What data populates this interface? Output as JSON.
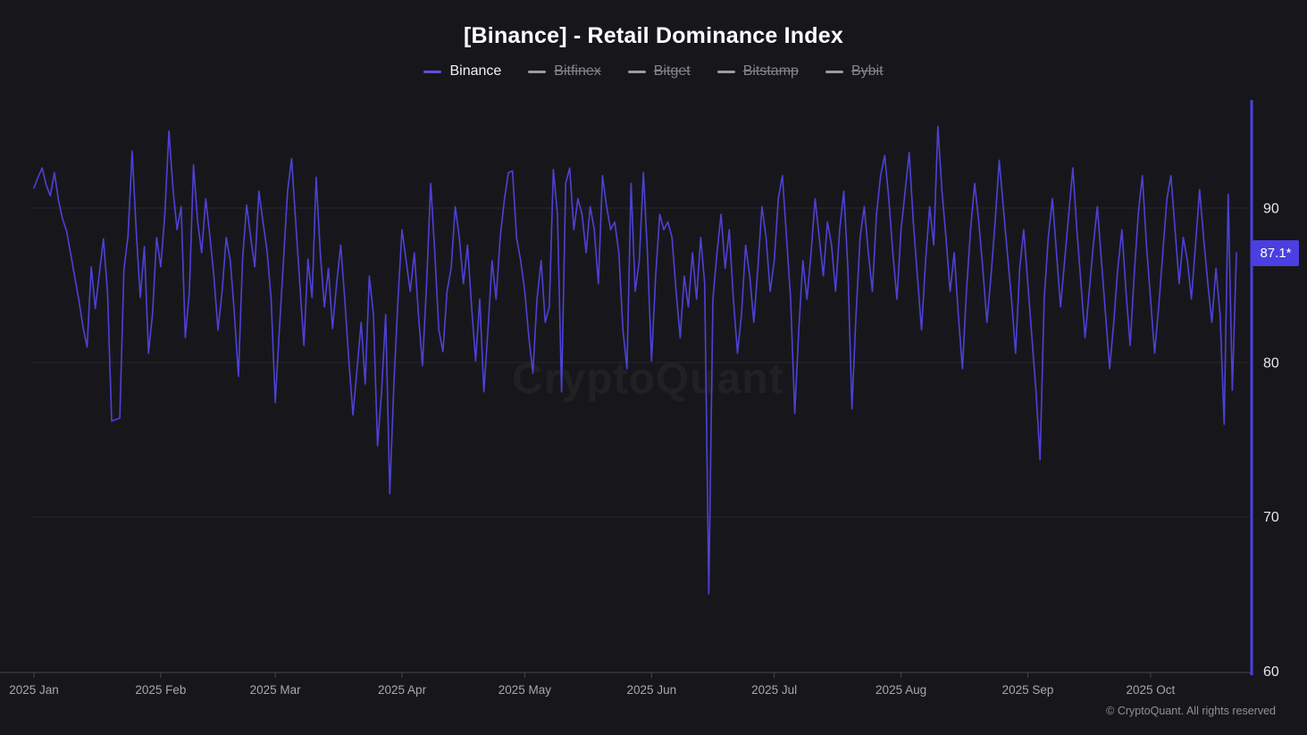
{
  "header": {
    "title": "[Binance] - Retail Dominance Index"
  },
  "legend": {
    "items": [
      {
        "label": "Binance",
        "color": "#5b50e1",
        "disabled": false
      },
      {
        "label": "Bitfinex",
        "color": "#9a9aa1",
        "disabled": true
      },
      {
        "label": "Bitget",
        "color": "#9a9aa1",
        "disabled": true
      },
      {
        "label": "Bitstamp",
        "color": "#9a9aa1",
        "disabled": true
      },
      {
        "label": "Bybit",
        "color": "#9a9aa1",
        "disabled": true
      }
    ]
  },
  "watermark": "CryptoQuant",
  "footer": {
    "copyright": "© CryptoQuant. All rights reserved"
  },
  "last_value_badge": {
    "text": "87.1*",
    "value": 87.1,
    "color": "#4b3ee2"
  },
  "chart_data": {
    "type": "line",
    "title": "[Binance] - Retail Dominance Index",
    "xlabel": "",
    "ylabel": "",
    "grid": "horizontal",
    "legend_position": "top-center",
    "x_start_date": "2025-01-01",
    "x_interval": "daily",
    "x_tick_labels": [
      "2025 Jan",
      "2025 Feb",
      "2025 Mar",
      "2025 Apr",
      "2025 May",
      "2025 Jun",
      "2025 Jul",
      "2025 Aug",
      "2025 Sep",
      "2025 Oct"
    ],
    "x_tick_day_indices": [
      0,
      31,
      59,
      90,
      120,
      151,
      181,
      212,
      243,
      273
    ],
    "y_ticks": [
      90,
      80,
      70,
      60
    ],
    "gridline_values": [
      90,
      80,
      70
    ],
    "ylim": [
      59.8,
      97.0
    ],
    "axis_color": "#4d3fe0",
    "series": [
      {
        "name": "Binance",
        "color": "#4e41d6",
        "last_value": 87.1,
        "values": [
          91.3,
          92.0,
          92.6,
          91.5,
          90.8,
          92.3,
          90.5,
          89.3,
          88.5,
          87.0,
          85.5,
          84.0,
          82.3,
          81.0,
          86.2,
          83.5,
          85.8,
          88.0,
          84.5,
          76.2,
          76.3,
          76.4,
          86.0,
          88.2,
          93.7,
          88.5,
          84.2,
          87.5,
          80.6,
          83.2,
          88.1,
          86.2,
          89.6,
          95.0,
          91.2,
          88.6,
          90.1,
          81.6,
          84.6,
          92.8,
          89.2,
          87.1,
          90.6,
          88.2,
          85.6,
          82.1,
          84.6,
          88.1,
          86.6,
          83.2,
          79.1,
          86.7,
          90.2,
          88.1,
          86.2,
          91.1,
          89.1,
          87.2,
          84.1,
          77.4,
          82.1,
          86.6,
          91.1,
          93.2,
          89.1,
          85.1,
          81.1,
          86.7,
          84.2,
          92.0,
          87.1,
          83.6,
          86.1,
          82.2,
          85.1,
          87.6,
          84.1,
          80.1,
          76.6,
          79.6,
          82.6,
          78.6,
          85.6,
          83.1,
          74.6,
          78.1,
          83.1,
          71.5,
          78.6,
          84.1,
          88.6,
          86.6,
          84.6,
          87.1,
          83.1,
          79.8,
          85.1,
          91.6,
          87.1,
          82.1,
          80.7,
          84.6,
          86.1,
          90.1,
          88.1,
          85.1,
          87.6,
          83.6,
          80.1,
          84.1,
          78.1,
          82.1,
          86.6,
          84.1,
          88.1,
          90.5,
          92.3,
          92.4,
          88.1,
          86.6,
          84.6,
          81.6,
          79.3,
          84.1,
          86.6,
          82.6,
          83.6,
          92.5,
          89.6,
          78.1,
          91.6,
          92.6,
          88.6,
          90.6,
          89.6,
          87.1,
          90.1,
          88.6,
          85.1,
          92.1,
          90.1,
          88.6,
          89.1,
          87.1,
          82.1,
          79.6,
          91.6,
          84.6,
          86.6,
          92.3,
          87.1,
          80.1,
          85.6,
          89.6,
          88.6,
          89.1,
          88.1,
          84.6,
          81.6,
          85.6,
          83.6,
          87.1,
          84.1,
          88.1,
          85.1,
          65.0,
          84.1,
          87.1,
          89.6,
          86.1,
          88.6,
          84.1,
          80.6,
          83.1,
          87.6,
          85.6,
          82.6,
          86.1,
          90.1,
          88.1,
          84.6,
          86.6,
          90.6,
          92.1,
          88.1,
          84.1,
          76.7,
          82.1,
          86.6,
          84.1,
          87.1,
          90.6,
          88.1,
          85.6,
          89.1,
          87.6,
          84.6,
          88.6,
          91.1,
          86.1,
          77.0,
          83.1,
          88.1,
          90.1,
          87.1,
          84.6,
          89.6,
          92.1,
          93.4,
          90.6,
          87.1,
          84.1,
          88.6,
          91.1,
          93.6,
          89.1,
          85.6,
          82.1,
          86.6,
          90.1,
          87.6,
          95.3,
          91.1,
          88.1,
          84.6,
          87.1,
          83.1,
          79.6,
          84.6,
          88.6,
          91.6,
          89.1,
          86.1,
          82.6,
          85.6,
          89.1,
          93.1,
          90.1,
          87.1,
          84.1,
          80.6,
          86.1,
          88.6,
          85.1,
          81.6,
          78.1,
          73.7,
          84.1,
          88.1,
          90.6,
          87.1,
          83.6,
          86.6,
          89.6,
          92.6,
          88.6,
          85.1,
          81.6,
          84.6,
          87.6,
          90.1,
          86.6,
          83.1,
          79.6,
          82.6,
          86.1,
          88.6,
          84.6,
          81.1,
          85.6,
          89.6,
          92.1,
          87.6,
          84.1,
          80.6,
          83.6,
          87.1,
          90.6,
          92.1,
          88.6,
          85.1,
          88.1,
          86.6,
          84.1,
          87.6,
          91.2,
          88.0,
          85.1,
          82.6,
          86.1,
          83.1,
          76.0,
          90.9,
          78.2,
          87.1
        ]
      }
    ]
  }
}
